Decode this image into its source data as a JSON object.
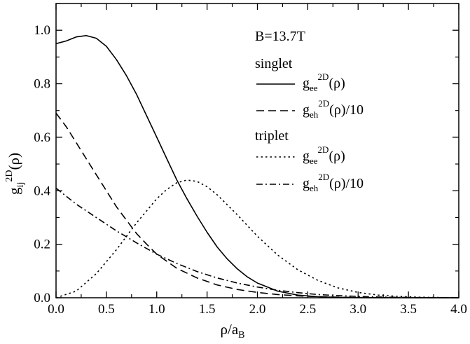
{
  "chart_data": {
    "type": "line",
    "xlabel": {
      "main": "ρ/a",
      "sub": "B"
    },
    "ylabel": {
      "main": "g",
      "sub": "ij",
      "sup": "2D",
      "tail": "(ρ)"
    },
    "xlim": [
      0.0,
      4.0
    ],
    "ylim": [
      0.0,
      1.1
    ],
    "xticks": [
      0.0,
      0.5,
      1.0,
      1.5,
      2.0,
      2.5,
      3.0,
      3.5,
      4.0
    ],
    "xtick_labels": [
      "0.0",
      "0.5",
      "1.0",
      "1.5",
      "2.0",
      "2.5",
      "3.0",
      "3.5",
      "4.0"
    ],
    "yticks": [
      0.0,
      0.2,
      0.4,
      0.6,
      0.8,
      1.0
    ],
    "ytick_labels": [
      "0.0",
      "0.2",
      "0.4",
      "0.6",
      "0.8",
      "1.0"
    ],
    "legend": {
      "field": "B=13.7T",
      "group1": "singlet",
      "group2": "triplet",
      "placement": "top-right"
    },
    "series": [
      {
        "name": "g_ee^2D(ρ)",
        "group": "singlet",
        "style": "solid",
        "label": {
          "main": "g",
          "sub": "ee",
          "sup": "2D",
          "tail": "(ρ)"
        },
        "x": [
          0.0,
          0.1,
          0.2,
          0.3,
          0.4,
          0.5,
          0.6,
          0.7,
          0.8,
          0.9,
          1.0,
          1.1,
          1.2,
          1.3,
          1.4,
          1.5,
          1.6,
          1.7,
          1.8,
          1.9,
          2.0,
          2.2,
          2.4,
          2.6,
          2.8,
          3.0,
          3.2,
          3.5,
          4.0
        ],
        "y": [
          0.95,
          0.96,
          0.975,
          0.98,
          0.97,
          0.94,
          0.89,
          0.83,
          0.76,
          0.68,
          0.6,
          0.52,
          0.44,
          0.37,
          0.305,
          0.245,
          0.19,
          0.145,
          0.108,
          0.078,
          0.055,
          0.025,
          0.01,
          0.004,
          0.0015,
          0.0005,
          0.0002,
          0.0,
          0.0
        ]
      },
      {
        "name": "g_eh^2D(ρ)/10",
        "group": "singlet",
        "style": "dashed",
        "label": {
          "main": "g",
          "sub": "eh",
          "sup": "2D",
          "tail": "(ρ)/10"
        },
        "x": [
          0.0,
          0.1,
          0.2,
          0.3,
          0.4,
          0.5,
          0.6,
          0.7,
          0.8,
          0.9,
          1.0,
          1.2,
          1.4,
          1.6,
          1.8,
          2.0,
          2.2,
          2.4,
          2.6,
          2.8,
          3.0,
          3.2,
          3.5,
          4.0
        ],
        "y": [
          0.69,
          0.64,
          0.58,
          0.52,
          0.46,
          0.4,
          0.34,
          0.29,
          0.24,
          0.2,
          0.163,
          0.11,
          0.074,
          0.048,
          0.031,
          0.02,
          0.012,
          0.007,
          0.004,
          0.002,
          0.001,
          0.0005,
          0.0002,
          0.0
        ]
      },
      {
        "name": "g_ee^2D(ρ)",
        "group": "triplet",
        "style": "dotted",
        "label": {
          "main": "g",
          "sub": "ee",
          "sup": "2D",
          "tail": "(ρ)"
        },
        "x": [
          0.0,
          0.2,
          0.4,
          0.6,
          0.8,
          1.0,
          1.1,
          1.2,
          1.3,
          1.4,
          1.5,
          1.6,
          1.8,
          2.0,
          2.2,
          2.4,
          2.6,
          2.8,
          3.0,
          3.2,
          3.4,
          3.6,
          3.8,
          4.0
        ],
        "y": [
          0.0,
          0.025,
          0.09,
          0.18,
          0.28,
          0.37,
          0.405,
          0.43,
          0.44,
          0.435,
          0.415,
          0.385,
          0.31,
          0.23,
          0.16,
          0.105,
          0.065,
          0.037,
          0.02,
          0.01,
          0.005,
          0.002,
          0.001,
          0.0
        ]
      },
      {
        "name": "g_eh^2D(ρ)/10",
        "group": "triplet",
        "style": "dashdot",
        "label": {
          "main": "g",
          "sub": "eh",
          "sup": "2D",
          "tail": "(ρ)/10"
        },
        "x": [
          0.0,
          0.2,
          0.4,
          0.6,
          0.8,
          1.0,
          1.2,
          1.4,
          1.6,
          1.8,
          2.0,
          2.2,
          2.4,
          2.6,
          2.8,
          3.0,
          3.2,
          3.5,
          4.0
        ],
        "y": [
          0.41,
          0.35,
          0.3,
          0.25,
          0.205,
          0.163,
          0.128,
          0.098,
          0.074,
          0.055,
          0.04,
          0.028,
          0.019,
          0.012,
          0.008,
          0.005,
          0.003,
          0.001,
          0.0
        ]
      }
    ]
  }
}
